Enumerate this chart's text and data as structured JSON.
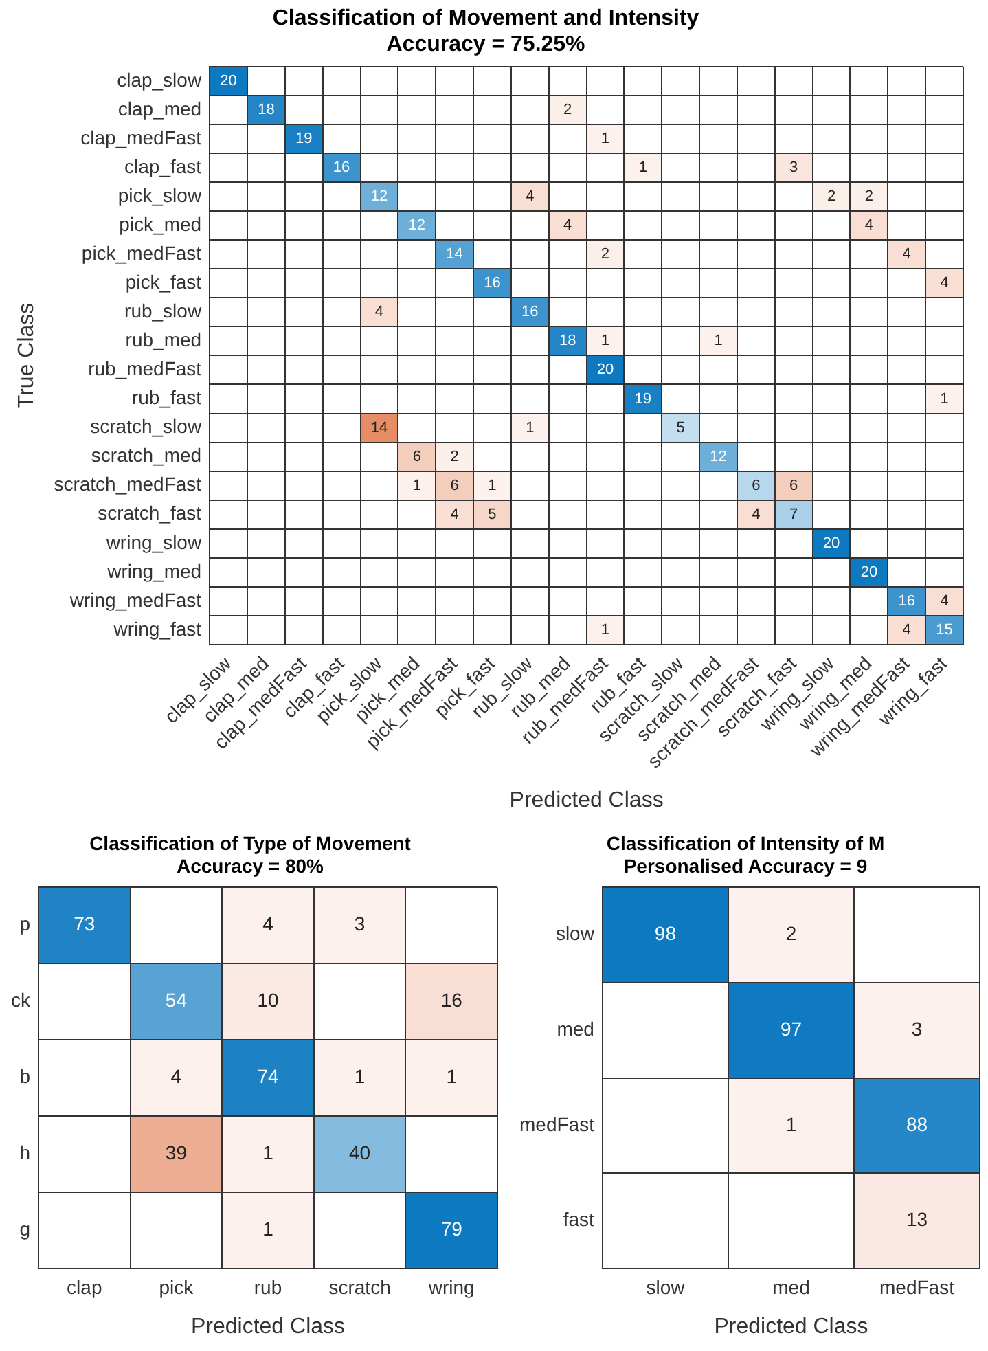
{
  "chart_data": [
    {
      "type": "heatmap",
      "title": "Classification of Movement and Intensity",
      "subtitle": "Accuracy = 75.25%",
      "xlabel": "Predicted Class",
      "ylabel": "True Class",
      "grid": true,
      "data_labels": true,
      "categories": [
        "clap_slow",
        "clap_med",
        "clap_medFast",
        "clap_fast",
        "pick_slow",
        "pick_med",
        "pick_medFast",
        "pick_fast",
        "rub_slow",
        "rub_med",
        "rub_medFast",
        "rub_fast",
        "scratch_slow",
        "scratch_med",
        "scratch_medFast",
        "scratch_fast",
        "wring_slow",
        "wring_med",
        "wring_medFast",
        "wring_fast"
      ],
      "y_categories": [
        "clap_slow",
        "clap_med",
        "clap_medFast",
        "clap_fast",
        "pick_slow",
        "pick_med",
        "pick_medFast",
        "pick_fast",
        "rub_slow",
        "rub_med",
        "rub_medFast",
        "rub_fast",
        "scratch_slow",
        "scratch_med",
        "scratch_medFast",
        "scratch_fast",
        "wring_slow",
        "wring_med",
        "wring_medFast",
        "wring_fast"
      ],
      "cells": [
        [
          20,
          null,
          null,
          null,
          null,
          null,
          null,
          null,
          null,
          null,
          null,
          null,
          null,
          null,
          null,
          null,
          null,
          null,
          null,
          null
        ],
        [
          null,
          18,
          null,
          null,
          null,
          null,
          null,
          null,
          null,
          2,
          null,
          null,
          null,
          null,
          null,
          null,
          null,
          null,
          null,
          null
        ],
        [
          null,
          null,
          19,
          null,
          null,
          null,
          null,
          null,
          null,
          null,
          1,
          null,
          null,
          null,
          null,
          null,
          null,
          null,
          null,
          null
        ],
        [
          null,
          null,
          null,
          16,
          null,
          null,
          null,
          null,
          null,
          null,
          null,
          1,
          null,
          null,
          null,
          3,
          null,
          null,
          null,
          null
        ],
        [
          null,
          null,
          null,
          null,
          12,
          null,
          null,
          null,
          4,
          null,
          null,
          null,
          null,
          null,
          null,
          null,
          2,
          2,
          null,
          null
        ],
        [
          null,
          null,
          null,
          null,
          null,
          12,
          null,
          null,
          null,
          4,
          null,
          null,
          null,
          null,
          null,
          null,
          null,
          4,
          null,
          null
        ],
        [
          null,
          null,
          null,
          null,
          null,
          null,
          14,
          null,
          null,
          null,
          2,
          null,
          null,
          null,
          null,
          null,
          null,
          null,
          4,
          null
        ],
        [
          null,
          null,
          null,
          null,
          null,
          null,
          null,
          16,
          null,
          null,
          null,
          null,
          null,
          null,
          null,
          null,
          null,
          null,
          null,
          4
        ],
        [
          null,
          null,
          null,
          null,
          4,
          null,
          null,
          null,
          16,
          null,
          null,
          null,
          null,
          null,
          null,
          null,
          null,
          null,
          null,
          null
        ],
        [
          null,
          null,
          null,
          null,
          null,
          null,
          null,
          null,
          null,
          18,
          1,
          null,
          null,
          1,
          null,
          null,
          null,
          null,
          null,
          null
        ],
        [
          null,
          null,
          null,
          null,
          null,
          null,
          null,
          null,
          null,
          null,
          20,
          null,
          null,
          null,
          null,
          null,
          null,
          null,
          null,
          null
        ],
        [
          null,
          null,
          null,
          null,
          null,
          null,
          null,
          null,
          null,
          null,
          null,
          19,
          null,
          null,
          null,
          null,
          null,
          null,
          null,
          1
        ],
        [
          null,
          null,
          null,
          null,
          14,
          null,
          null,
          null,
          1,
          null,
          null,
          null,
          5,
          null,
          null,
          null,
          null,
          null,
          null,
          null
        ],
        [
          null,
          null,
          null,
          null,
          null,
          6,
          2,
          null,
          null,
          null,
          null,
          null,
          null,
          12,
          null,
          null,
          null,
          null,
          null,
          null
        ],
        [
          null,
          null,
          null,
          null,
          null,
          1,
          6,
          1,
          null,
          null,
          null,
          null,
          null,
          null,
          6,
          6,
          null,
          null,
          null,
          null
        ],
        [
          null,
          null,
          null,
          null,
          null,
          null,
          4,
          5,
          null,
          null,
          null,
          null,
          null,
          null,
          4,
          7,
          null,
          null,
          null,
          null
        ],
        [
          null,
          null,
          null,
          null,
          null,
          null,
          null,
          null,
          null,
          null,
          null,
          null,
          null,
          null,
          null,
          null,
          20,
          null,
          null,
          null
        ],
        [
          null,
          null,
          null,
          null,
          null,
          null,
          null,
          null,
          null,
          null,
          null,
          null,
          null,
          null,
          null,
          null,
          null,
          20,
          null,
          null
        ],
        [
          null,
          null,
          null,
          null,
          null,
          null,
          null,
          null,
          null,
          null,
          null,
          null,
          null,
          null,
          null,
          null,
          null,
          null,
          16,
          4
        ],
        [
          null,
          null,
          null,
          null,
          null,
          null,
          null,
          null,
          null,
          null,
          1,
          null,
          null,
          null,
          null,
          null,
          null,
          null,
          4,
          15
        ]
      ]
    },
    {
      "type": "heatmap",
      "title": "Classification of Type of Movement",
      "subtitle": "Accuracy = 80%",
      "xlabel": "Predicted Class",
      "grid": true,
      "data_labels": true,
      "categories": [
        "clap",
        "pick",
        "rub",
        "scratch",
        "wring"
      ],
      "y_categories": [
        "p",
        "ck",
        "b",
        "h",
        "g"
      ],
      "cells": [
        [
          73,
          null,
          4,
          3,
          null
        ],
        [
          null,
          54,
          10,
          null,
          16
        ],
        [
          null,
          4,
          74,
          1,
          1
        ],
        [
          null,
          39,
          1,
          40,
          null
        ],
        [
          null,
          null,
          1,
          null,
          79
        ]
      ]
    },
    {
      "type": "heatmap",
      "title": "Classification of Intensity of M",
      "subtitle": "Personalised Accuracy = 9",
      "xlabel": "Predicted Class",
      "grid": true,
      "data_labels": true,
      "categories": [
        "slow",
        "med",
        "medFast"
      ],
      "y_categories": [
        "slow",
        "med",
        "medFast",
        "fast"
      ],
      "cells": [
        [
          98,
          2,
          null
        ],
        [
          null,
          97,
          3
        ],
        [
          null,
          1,
          88
        ],
        [
          null,
          null,
          13
        ]
      ]
    }
  ]
}
